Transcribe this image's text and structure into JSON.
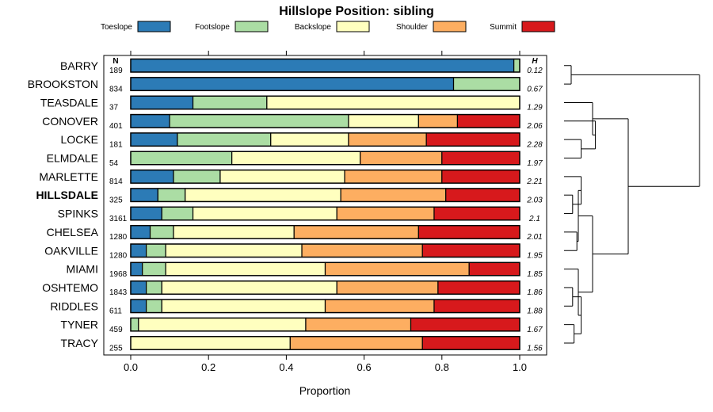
{
  "chart_data": {
    "type": "bar",
    "orientation": "horizontal",
    "stacked": true,
    "title": "Hillslope Position: sibling",
    "xlabel": "Proportion",
    "xlim": [
      0,
      1
    ],
    "x_ticks": [
      "0.0",
      "0.2",
      "0.4",
      "0.6",
      "0.8",
      "1.0"
    ],
    "legend_position": "top",
    "n_header": "N",
    "h_header": "H",
    "highlight": "HILLSDALE",
    "series": [
      {
        "name": "Toeslope",
        "color": "#2C7BB6"
      },
      {
        "name": "Footslope",
        "color": "#ABDDA4"
      },
      {
        "name": "Backslope",
        "color": "#FFFFBF"
      },
      {
        "name": "Shoulder",
        "color": "#FDAE61"
      },
      {
        "name": "Summit",
        "color": "#D7191C"
      }
    ],
    "rows": [
      {
        "label": "BARRY",
        "n": "189",
        "h": "0.12",
        "values": [
          0.985,
          0.015,
          0,
          0,
          0
        ]
      },
      {
        "label": "BROOKSTON",
        "n": "834",
        "h": "0.67",
        "values": [
          0.83,
          0.17,
          0,
          0,
          0
        ]
      },
      {
        "label": "TEASDALE",
        "n": "37",
        "h": "1.29",
        "values": [
          0.16,
          0.19,
          0.65,
          0,
          0
        ]
      },
      {
        "label": "CONOVER",
        "n": "401",
        "h": "2.06",
        "values": [
          0.1,
          0.46,
          0.18,
          0.1,
          0.16
        ]
      },
      {
        "label": "LOCKE",
        "n": "181",
        "h": "2.28",
        "values": [
          0.12,
          0.24,
          0.2,
          0.2,
          0.24
        ]
      },
      {
        "label": "ELMDALE",
        "n": "54",
        "h": "1.97",
        "values": [
          0,
          0.26,
          0.33,
          0.21,
          0.2
        ]
      },
      {
        "label": "MARLETTE",
        "n": "814",
        "h": "2.21",
        "values": [
          0.11,
          0.12,
          0.32,
          0.25,
          0.2
        ]
      },
      {
        "label": "HILLSDALE",
        "n": "325",
        "h": "2.03",
        "values": [
          0.07,
          0.07,
          0.4,
          0.27,
          0.19
        ]
      },
      {
        "label": "SPINKS",
        "n": "3161",
        "h": "2.1",
        "values": [
          0.08,
          0.08,
          0.37,
          0.25,
          0.22
        ]
      },
      {
        "label": "CHELSEA",
        "n": "1280",
        "h": "2.01",
        "values": [
          0.05,
          0.06,
          0.31,
          0.32,
          0.26
        ]
      },
      {
        "label": "OAKVILLE",
        "n": "1280",
        "h": "1.95",
        "values": [
          0.04,
          0.05,
          0.35,
          0.31,
          0.25
        ]
      },
      {
        "label": "MIAMI",
        "n": "1968",
        "h": "1.85",
        "values": [
          0.03,
          0.06,
          0.41,
          0.37,
          0.13
        ]
      },
      {
        "label": "OSHTEMO",
        "n": "1843",
        "h": "1.86",
        "values": [
          0.04,
          0.04,
          0.45,
          0.26,
          0.21
        ]
      },
      {
        "label": "RIDDLES",
        "n": "611",
        "h": "1.88",
        "values": [
          0.04,
          0.04,
          0.42,
          0.28,
          0.22
        ]
      },
      {
        "label": "TYNER",
        "n": "459",
        "h": "1.67",
        "values": [
          0,
          0.02,
          0.43,
          0.27,
          0.28
        ]
      },
      {
        "label": "TRACY",
        "n": "255",
        "h": "1.56",
        "values": [
          0,
          0,
          0.41,
          0.34,
          0.25
        ]
      }
    ],
    "dendrogram": {
      "merges": [
        [
          [
            0
          ],
          [
            1
          ]
        ],
        [
          [
            4
          ],
          [
            5
          ]
        ],
        [
          [
            3
          ],
          [
            4,
            5
          ]
        ],
        [
          [
            2
          ],
          [
            3,
            4,
            5
          ]
        ],
        [
          [
            9
          ],
          [
            10
          ]
        ],
        [
          [
            7
          ],
          [
            8
          ]
        ],
        [
          [
            6
          ],
          [
            7,
            8
          ]
        ],
        [
          [
            6,
            7,
            8
          ],
          [
            9,
            10
          ]
        ],
        [
          [
            12
          ],
          [
            13
          ]
        ],
        [
          [
            14
          ],
          [
            15
          ]
        ],
        [
          [
            12,
            13
          ],
          [
            14,
            15
          ]
        ],
        [
          [
            11
          ],
          [
            12,
            13,
            14,
            15
          ]
        ],
        [
          [
            6,
            7,
            8,
            9,
            10
          ],
          [
            11,
            12,
            13,
            14,
            15
          ]
        ],
        [
          [
            2,
            3,
            4,
            5
          ],
          [
            6,
            7,
            8,
            9,
            10,
            11,
            12,
            13,
            14,
            15
          ]
        ],
        [
          [
            0,
            1
          ],
          [
            2,
            3,
            4,
            5,
            6,
            7,
            8,
            9,
            10,
            11,
            12,
            13,
            14,
            15
          ]
        ]
      ],
      "heights": [
        0.05,
        0.12,
        0.22,
        0.2,
        0.09,
        0.06,
        0.12,
        0.1,
        0.06,
        0.07,
        0.12,
        0.1,
        0.2,
        0.45,
        0.95
      ]
    }
  }
}
